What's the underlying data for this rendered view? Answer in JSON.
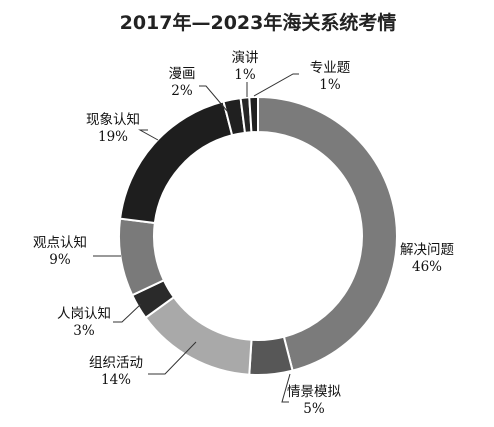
{
  "chart_data": {
    "type": "pie",
    "style": "donut",
    "title": "2017年—2023年海关系统考情",
    "legend": "labels placed around the ring with leader lines",
    "slices": [
      {
        "label": "解决问题",
        "value": 46,
        "value_text": "46%",
        "color": "#7b7b7b"
      },
      {
        "label": "情景模拟",
        "value": 5,
        "value_text": "5%",
        "color": "#575757"
      },
      {
        "label": "组织活动",
        "value": 14,
        "value_text": "14%",
        "color": "#a9a9a9"
      },
      {
        "label": "人岗认知",
        "value": 3,
        "value_text": "3%",
        "color": "#2a2a2a"
      },
      {
        "label": "观点认知",
        "value": 9,
        "value_text": "9%",
        "color": "#7a7a7a"
      },
      {
        "label": "现象认知",
        "value": 19,
        "value_text": "19%",
        "color": "#1e1e1e"
      },
      {
        "label": "漫画",
        "value": 2,
        "value_text": "2%",
        "color": "#202020"
      },
      {
        "label": "演讲",
        "value": 1,
        "value_text": "1%",
        "color": "#262626"
      },
      {
        "label": "专业题",
        "value": 1,
        "value_text": "1%",
        "color": "#202020"
      }
    ]
  }
}
